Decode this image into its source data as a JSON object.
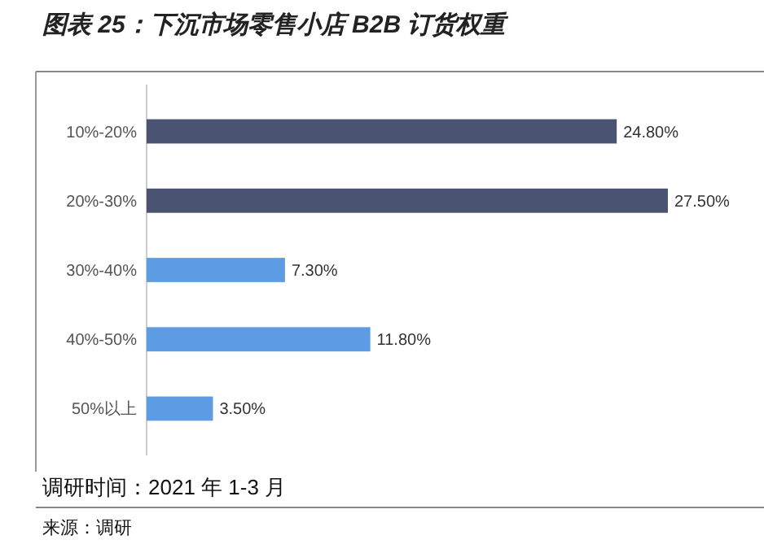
{
  "chart_data": {
    "type": "bar",
    "orientation": "horizontal",
    "title": "图表 25：下沉市场零售小店 B2B 订货权重",
    "categories": [
      "10%-20%",
      "20%-30%",
      "30%-40%",
      "40%-50%",
      "50%以上"
    ],
    "values": [
      24.8,
      27.5,
      7.3,
      11.8,
      3.5
    ],
    "colors": [
      "#4a5372",
      "#4a5372",
      "#5d9ce3",
      "#5d9ce3",
      "#5d9ce3"
    ],
    "value_labels": [
      "24.80%",
      "27.50%",
      "7.30%",
      "11.80%",
      "3.50%"
    ],
    "annotations": [
      "调研时间：2021 年 1-3 月",
      "来源：调研"
    ]
  }
}
